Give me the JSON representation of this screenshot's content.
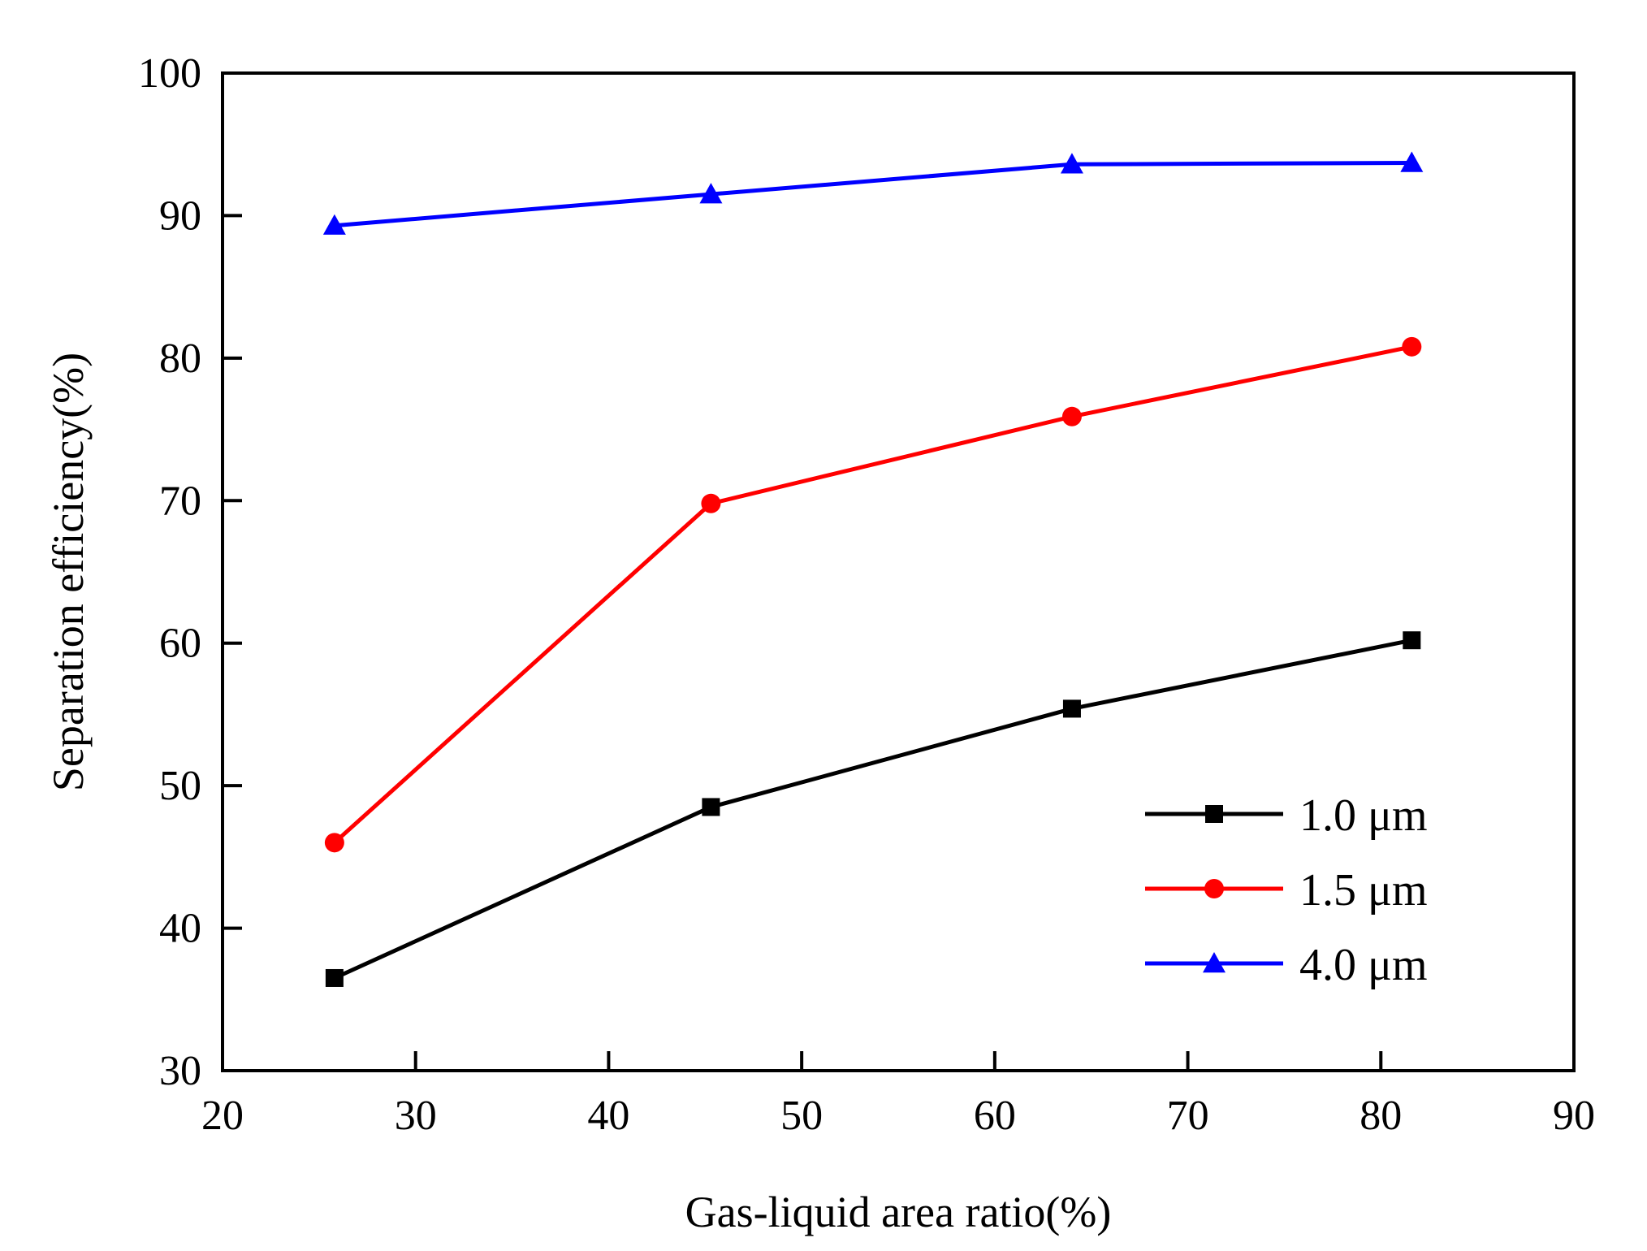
{
  "chart_data": {
    "type": "line",
    "title": "",
    "xlabel": "Gas-liquid area ratio(%)",
    "ylabel": "Separation efficiency(%)",
    "xlim": [
      20,
      90
    ],
    "ylim": [
      30,
      100
    ],
    "xticks": [
      20,
      30,
      40,
      50,
      60,
      70,
      80,
      90
    ],
    "yticks": [
      30,
      40,
      50,
      60,
      70,
      80,
      90,
      100
    ],
    "x": [
      25.8,
      45.3,
      64.0,
      81.6
    ],
    "legend_position": "bottom-right",
    "grid": false,
    "series": [
      {
        "name": "1.0 μm",
        "marker": "square",
        "color": "#000000",
        "values": [
          36.5,
          48.5,
          55.4,
          60.2
        ]
      },
      {
        "name": "1.5 μm",
        "marker": "circle",
        "color": "#ff0000",
        "values": [
          46.0,
          69.8,
          75.9,
          80.8
        ]
      },
      {
        "name": "4.0 μm",
        "marker": "triangle",
        "color": "#0000ff",
        "values": [
          89.3,
          91.5,
          93.6,
          93.7
        ]
      }
    ]
  }
}
